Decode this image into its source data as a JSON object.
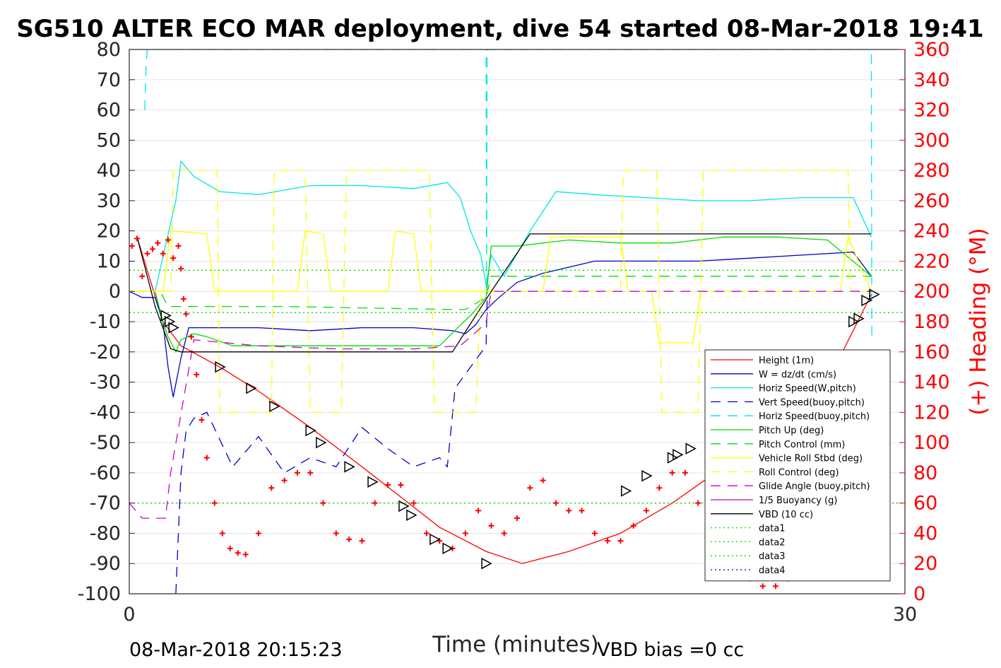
{
  "chart_data": {
    "type": "line",
    "title": "SG510 ALTER ECO MAR deployment, dive 54 started 08-Mar-2018 19:41",
    "xlabel": "Time (minutes)",
    "ylabel_right": "(+) Heading (°M)",
    "xlim": [
      0,
      30
    ],
    "ylim": [
      -100,
      80
    ],
    "ylim_right": [
      0,
      360
    ],
    "x_ticks": [
      "0",
      "30"
    ],
    "y_ticks": [
      "80",
      "70",
      "60",
      "50",
      "40",
      "30",
      "20",
      "10",
      "0",
      "-10",
      "-20",
      "-30",
      "-40",
      "-50",
      "-60",
      "-70",
      "-80",
      "-90",
      "-100"
    ],
    "y_right_ticks": [
      "360",
      "340",
      "320",
      "300",
      "280",
      "260",
      "240",
      "220",
      "200",
      "180",
      "160",
      "140",
      "120",
      "100",
      "80",
      "60",
      "40",
      "20",
      "0"
    ],
    "grid": true,
    "legend_position": "bottom-right",
    "footer_left": "08-Mar-2018 20:15:23",
    "footer_right": "VBD bias =0 cc",
    "colors": {
      "height": "#ff0000",
      "w": "#0000cc",
      "horiz_speed": "#00e5e5",
      "pitch": "#00dd00",
      "roll": "#ffff00",
      "glide": "#cc00cc",
      "vbd": "#000000",
      "heading": "#ff0000"
    },
    "legend": [
      {
        "label": "Height (1m)",
        "color": "#ff0000",
        "dash": "solid"
      },
      {
        "label": "W = dz/dt (cm/s)",
        "color": "#0000cc",
        "dash": "solid"
      },
      {
        "label": "Horiz Speed(W,pitch)",
        "color": "#00e5e5",
        "dash": "solid"
      },
      {
        "label": "Vert Speed(buoy,pitch)",
        "color": "#0000cc",
        "dash": "dashed"
      },
      {
        "label": "Horiz Speed(buoy,pitch)",
        "color": "#00e5e5",
        "dash": "dashed"
      },
      {
        "label": "Pitch Up (deg)",
        "color": "#00dd00",
        "dash": "solid"
      },
      {
        "label": "Pitch Control (mm)",
        "color": "#00dd00",
        "dash": "dashed"
      },
      {
        "label": "Vehicle Roll Stbd (deg)",
        "color": "#ffff00",
        "dash": "solid"
      },
      {
        "label": "Roll Control (deg)",
        "color": "#ffff00",
        "dash": "dashed"
      },
      {
        "label": "Glide Angle (buoy,pitch)",
        "color": "#cc00cc",
        "dash": "dashed"
      },
      {
        "label": "1/5 Buoyancy (g)",
        "color": "#cc00cc",
        "dash": "solid"
      },
      {
        "label": "VBD (10 cc)",
        "color": "#000000",
        "dash": "solid"
      },
      {
        "label": "data1",
        "color": "#00dd00",
        "dash": "dotted"
      },
      {
        "label": "data2",
        "color": "#00dd00",
        "dash": "dotted"
      },
      {
        "label": "data3",
        "color": "#00dd00",
        "dash": "dotted"
      },
      {
        "label": "data4",
        "color": "#0000cc",
        "dash": "dotted"
      }
    ],
    "series": [
      {
        "key": "height",
        "name": "Height (1m)",
        "x": [
          0.3,
          1.3,
          2.0,
          3.5,
          5.0,
          7.0,
          9.0,
          10.5,
          12.0,
          13.8,
          15.2,
          17.0,
          19.0,
          21.0,
          23.0,
          25.0,
          27.0,
          28.7
        ],
        "y": [
          18,
          -10,
          -18,
          -25,
          -33,
          -45,
          -58,
          -68,
          -78,
          -86,
          -90,
          -86,
          -80,
          -70,
          -58,
          -45,
          -30,
          -1
        ]
      },
      {
        "key": "w",
        "name": "W = dz/dt (cm/s)",
        "x": [
          0,
          0.5,
          1.0,
          1.3,
          1.5,
          1.7,
          2.0,
          2.3,
          3,
          5,
          7,
          9,
          11,
          12.5,
          13,
          13.4,
          13.8,
          14.3,
          15,
          16,
          18,
          20,
          22,
          24,
          26,
          28,
          28.7
        ],
        "y": [
          0,
          -2,
          -2,
          -10,
          -25,
          -35,
          -22,
          -12,
          -12,
          -12,
          -13,
          -12,
          -12,
          -13,
          -14,
          -11,
          -6,
          -2,
          3,
          6,
          10,
          10,
          10,
          11,
          12,
          13,
          5
        ]
      },
      {
        "key": "horiz_speed",
        "name": "Horiz Speed(W,pitch)",
        "x": [
          0,
          1.0,
          1.4,
          1.8,
          2.0,
          2.5,
          3.5,
          5,
          7,
          9,
          11,
          12.3,
          12.8,
          13.2,
          13.6,
          13.8,
          14.0,
          14.5,
          15.5,
          16.5,
          18,
          20,
          22,
          24,
          26,
          28,
          28.7
        ],
        "y": [
          0,
          0,
          15,
          30,
          43,
          38,
          33,
          32,
          35,
          35,
          34,
          36,
          31,
          20,
          12,
          2,
          12,
          5,
          20,
          33,
          32,
          31,
          30,
          30,
          31,
          31,
          18
        ]
      },
      {
        "key": "vert_speed_buoy",
        "name": "Vert Speed(buoy,pitch)",
        "x": [
          1.8,
          2.0,
          2.2,
          2.5,
          3.0,
          4.0,
          5.0,
          6.0,
          7.0,
          8.0,
          9.0,
          10.0,
          11.0,
          12.0,
          12.3,
          12.6,
          13.2,
          13.8,
          13.85
        ],
        "y": [
          -100,
          -60,
          -46,
          -42,
          -40,
          -58,
          -48,
          -60,
          -55,
          -58,
          -45,
          -52,
          -58,
          -55,
          -58,
          -32,
          -25,
          -18,
          0
        ]
      },
      {
        "key": "horiz_speed_buoy",
        "name": "Horiz Speed(buoy,pitch)",
        "x": [
          0.6,
          0.65,
          0.7,
          13.8,
          13.82,
          13.84,
          28.7,
          28.72
        ],
        "y": [
          60,
          75,
          80,
          80,
          0,
          80,
          80,
          -15
        ]
      },
      {
        "key": "pitch_up",
        "name": "Pitch Up (deg)",
        "x": [
          0,
          1.0,
          1.3,
          1.5,
          1.8,
          2.0,
          2.5,
          3.0,
          4,
          6,
          8,
          10,
          12,
          12.7,
          13.2,
          13.8,
          14.0,
          15,
          17,
          19,
          21,
          23,
          25,
          27,
          28.7
        ],
        "y": [
          0,
          0,
          -10,
          -15,
          -20,
          -16,
          -14,
          -15,
          -18,
          -18,
          -18,
          -18,
          -18,
          -12,
          -8,
          -2,
          15,
          15,
          17,
          16,
          16,
          18,
          18,
          17,
          5
        ]
      },
      {
        "key": "pitch_control",
        "name": "Pitch Control (mm)",
        "x": [
          0,
          1.2,
          1.5,
          2.0,
          6,
          12.6,
          13.0,
          13.8,
          14.0,
          28.7
        ],
        "y": [
          0,
          0,
          -5,
          -5,
          -5,
          -6,
          -6,
          -2,
          5,
          5
        ]
      },
      {
        "key": "roll",
        "name": "Vehicle Roll Stbd (deg)",
        "x": [
          0,
          1.3,
          1.6,
          3.0,
          3.3,
          6.5,
          6.8,
          7.5,
          7.8,
          10,
          10.3,
          11,
          11.3,
          13.6,
          14.0,
          16.0,
          16.3,
          19,
          19.3,
          20.2,
          20.5,
          21.8,
          22.1,
          27.5,
          27.8,
          28.7
        ],
        "y": [
          0,
          0,
          20,
          19,
          0,
          0,
          20,
          19,
          0,
          0,
          20,
          19,
          0,
          0,
          0,
          0,
          18,
          18,
          0,
          0,
          -17,
          -17,
          0,
          0,
          18,
          0
        ]
      },
      {
        "key": "roll_control",
        "name": "Roll Control (deg)",
        "x": [
          0,
          1.6,
          1.7,
          3.4,
          3.5,
          5.5,
          5.6,
          6.8,
          7.0,
          8.2,
          8.4,
          11.6,
          11.8,
          13.4,
          13.6,
          19.0,
          19.1,
          20.4,
          20.6,
          22.0,
          22.2,
          27.8,
          27.9,
          28.7
        ],
        "y": [
          0,
          0,
          40,
          40,
          -40,
          -40,
          40,
          40,
          -40,
          -40,
          40,
          40,
          -40,
          -40,
          0,
          0,
          40,
          40,
          -40,
          -40,
          40,
          40,
          0,
          0
        ]
      },
      {
        "key": "glide_angle",
        "name": "Glide Angle (buoy,pitch)",
        "x": [
          0,
          0.5,
          1.4,
          1.6,
          2.5,
          5,
          8,
          11,
          12.8,
          13.6,
          13.8,
          14.0,
          28.7
        ],
        "y": [
          -70,
          -75,
          -75,
          -60,
          -16,
          -18,
          -19,
          -19,
          -18,
          -12,
          -10,
          0,
          0
        ]
      },
      {
        "key": "vbd",
        "name": "VBD (10 cc)",
        "x": [
          0.3,
          1.0,
          1.3,
          1.6,
          2.0,
          12.5,
          14.0,
          15.5,
          28.7
        ],
        "y": [
          18,
          -5,
          -12,
          -19,
          -20,
          -20,
          0,
          19,
          19
        ]
      },
      {
        "key": "data1",
        "name": "data1",
        "x": [
          0,
          30
        ],
        "y": [
          7,
          7
        ]
      },
      {
        "key": "data2",
        "name": "data2",
        "x": [
          0,
          30
        ],
        "y": [
          -7,
          -7
        ]
      },
      {
        "key": "data3",
        "name": "data3",
        "x": [
          0,
          30
        ],
        "y": [
          -70,
          -70
        ]
      }
    ],
    "heading_series": {
      "name": "(+) Heading (°M)",
      "x": [
        0.1,
        0.3,
        0.5,
        0.7,
        0.9,
        1.1,
        1.3,
        1.5,
        1.7,
        1.9,
        2.0,
        2.1,
        2.2,
        2.4,
        2.6,
        2.8,
        3.0,
        3.3,
        3.6,
        3.9,
        4.2,
        4.5,
        5.0,
        5.5,
        6.0,
        6.5,
        7.0,
        7.5,
        8.0,
        8.5,
        9.0,
        9.5,
        10.0,
        10.5,
        11.0,
        11.5,
        12.0,
        12.5,
        13.0,
        13.5,
        14.0,
        14.5,
        15.0,
        15.5,
        16.0,
        16.5,
        17.0,
        17.5,
        18.0,
        18.5,
        19.0,
        19.5,
        20.0,
        20.5,
        21.0,
        21.5,
        22.0,
        22.5,
        23.0,
        23.5,
        24.0,
        24.5,
        25.0,
        25.5,
        26.0,
        26.5,
        27.0
      ],
      "y": [
        230,
        235,
        210,
        225,
        228,
        232,
        225,
        234,
        222,
        230,
        215,
        195,
        185,
        170,
        145,
        115,
        90,
        60,
        40,
        30,
        27,
        26,
        40,
        70,
        75,
        80,
        80,
        60,
        40,
        36,
        35,
        60,
        72,
        72,
        60,
        40,
        35,
        30,
        40,
        55,
        45,
        40,
        50,
        70,
        75,
        60,
        55,
        55,
        40,
        35,
        35,
        45,
        55,
        70,
        80,
        80,
        60,
        40,
        35,
        20,
        10,
        5,
        5,
        10,
        15,
        20,
        25
      ]
    },
    "height_markers": {
      "x": [
        1.4,
        1.55,
        1.7,
        3.5,
        4.7,
        5.6,
        7.0,
        7.4,
        8.5,
        9.4,
        10.6,
        10.9,
        11.8,
        12.3,
        13.8,
        19.2,
        20.0,
        21.0,
        21.2,
        21.7,
        28.0,
        28.2,
        28.5,
        28.8
      ],
      "y": [
        -8,
        -10,
        -12,
        -25,
        -32,
        -38,
        -46,
        -50,
        -58,
        -63,
        -71,
        -74,
        -82,
        -85,
        -90,
        -66,
        -61,
        -55,
        -54,
        -52,
        -10,
        -9,
        -3,
        -1
      ]
    }
  }
}
